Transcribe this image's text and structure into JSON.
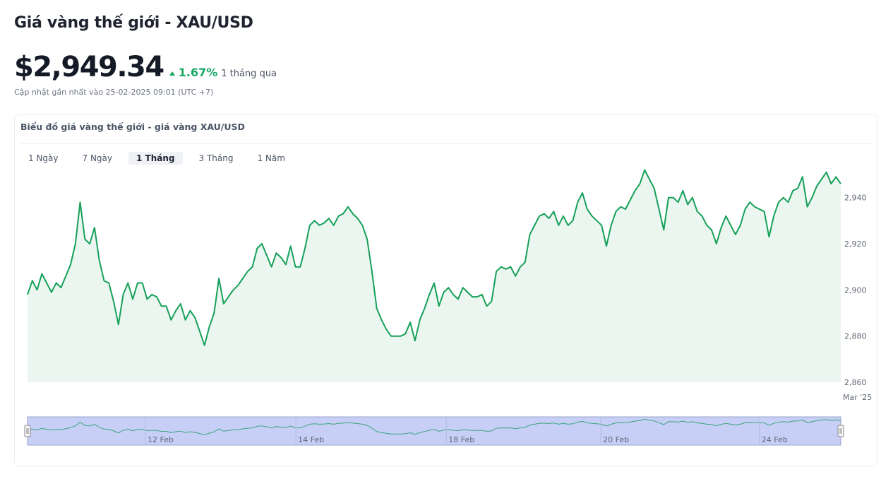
{
  "header": {
    "title": "Giá vàng thế giới - XAU/USD",
    "price": "$2,949.34",
    "change": "1.67%",
    "period": "1 tháng qua",
    "updated": "Cập nhật gần nhất vào 25-02-2025 09:01 (UTC +7)"
  },
  "card": {
    "title": "Biểu đồ giá vàng thế giới - giá vàng XAU/USD",
    "tabs": [
      "1 Ngày",
      "7 Ngày",
      "1 Tháng",
      "3 Tháng",
      "1 Năm"
    ],
    "active_tab": "1 Tháng"
  },
  "colors": {
    "line": "#16a05a",
    "area": "#eaf6ef",
    "navigator_fill": "#c7cff7",
    "navigator_line": "#3aa57a",
    "up": "#17a864"
  },
  "chart_data": {
    "type": "area",
    "title": "Biểu đồ giá vàng thế giới - giá vàng XAU/USD",
    "xlabel": "",
    "ylabel": "",
    "ylim": [
      2860,
      2950
    ],
    "y_ticks": [
      2860,
      2880,
      2900,
      2920,
      2940
    ],
    "y_tick_labels": [
      "2,860",
      "2,880",
      "2,900",
      "2,920",
      "2,940"
    ],
    "x_axis_label": "Mar '25",
    "navigator_labels": [
      "12 Feb",
      "14 Feb",
      "18 Feb",
      "20 Feb",
      "24 Feb"
    ],
    "grid": false,
    "series": [
      {
        "values": [
          2898,
          2904,
          2900,
          2907,
          2903,
          2899,
          2903,
          2901,
          2906,
          2911,
          2920,
          2938,
          2922,
          2920,
          2927,
          2913,
          2904,
          2903,
          2895,
          2885,
          2898,
          2903,
          2896,
          2903,
          2903,
          2896,
          2898,
          2897,
          2893,
          2893,
          2887,
          2891,
          2894,
          2887,
          2891,
          2888,
          2882,
          2876,
          2884,
          2890,
          2905,
          2894,
          2897,
          2900,
          2902,
          2905,
          2908,
          2910,
          2918,
          2920,
          2915,
          2910,
          2916,
          2914,
          2911,
          2919,
          2910,
          2910,
          2918,
          2928,
          2930,
          2928,
          2929,
          2931,
          2928,
          2932,
          2933,
          2936,
          2933,
          2931,
          2928,
          2922,
          2908,
          2892,
          2887,
          2883,
          2880,
          2880,
          2880,
          2881,
          2886,
          2878,
          2887,
          2892,
          2898,
          2903,
          2893,
          2899,
          2901,
          2898,
          2896,
          2901,
          2899,
          2897,
          2897,
          2898,
          2893,
          2895,
          2908,
          2910,
          2909,
          2910,
          2906,
          2910,
          2912,
          2924,
          2928,
          2932,
          2933,
          2931,
          2934,
          2928,
          2932,
          2928,
          2930,
          2938,
          2942,
          2935,
          2932,
          2930,
          2928,
          2919,
          2928,
          2934,
          2936,
          2935,
          2939,
          2943,
          2946,
          2952,
          2948,
          2944,
          2935,
          2926,
          2940,
          2940,
          2938,
          2943,
          2937,
          2940,
          2934,
          2932,
          2928,
          2926,
          2920,
          2927,
          2932,
          2928,
          2924,
          2928,
          2935,
          2938,
          2936,
          2935,
          2934,
          2923,
          2932,
          2938,
          2940,
          2938,
          2943,
          2944,
          2949,
          2936,
          2940,
          2945,
          2948,
          2951,
          2946,
          2949,
          2946
        ]
      }
    ]
  }
}
